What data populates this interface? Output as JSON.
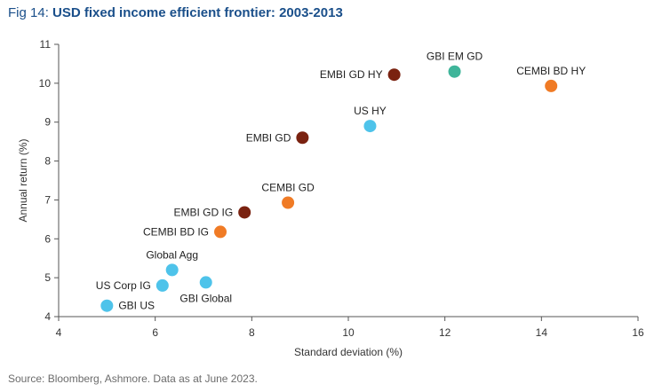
{
  "header": {
    "fig_label": "Fig 14:",
    "title": "USD fixed income efficient frontier: 2003-2013"
  },
  "footer": {
    "source": "Source: Bloomberg, Ashmore. Data as at June 2023."
  },
  "colors": {
    "light_blue": "#4ec3ea",
    "teal": "#3fb59a",
    "dark_red": "#7a2210",
    "orange": "#f07b25",
    "axis": "#555555",
    "title": "#1a4f8a"
  },
  "chart_data": {
    "type": "scatter",
    "title": "USD fixed income efficient frontier: 2003-2013",
    "xlabel": "Standard deviation (%)",
    "ylabel": "Annual return (%)",
    "xlim": [
      4,
      16
    ],
    "ylim": [
      4,
      11
    ],
    "xticks": [
      4,
      6,
      8,
      10,
      12,
      14,
      16
    ],
    "yticks": [
      4,
      5,
      6,
      7,
      8,
      9,
      10,
      11
    ],
    "grid": false,
    "points": [
      {
        "label": "GBI US",
        "x": 5.0,
        "y": 4.28,
        "color": "#4ec3ea",
        "label_pos": "right"
      },
      {
        "label": "US Corp IG",
        "x": 6.15,
        "y": 4.8,
        "color": "#4ec3ea",
        "label_pos": "left"
      },
      {
        "label": "Global Agg",
        "x": 6.35,
        "y": 5.2,
        "color": "#4ec3ea",
        "label_pos": "above"
      },
      {
        "label": "GBI Global",
        "x": 7.05,
        "y": 4.88,
        "color": "#4ec3ea",
        "label_pos": "below"
      },
      {
        "label": "CEMBI BD IG",
        "x": 7.35,
        "y": 6.18,
        "color": "#f07b25",
        "label_pos": "left"
      },
      {
        "label": "EMBI GD IG",
        "x": 7.85,
        "y": 6.68,
        "color": "#7a2210",
        "label_pos": "left"
      },
      {
        "label": "CEMBI GD",
        "x": 8.75,
        "y": 6.93,
        "color": "#f07b25",
        "label_pos": "above"
      },
      {
        "label": "EMBI GD",
        "x": 9.05,
        "y": 8.6,
        "color": "#7a2210",
        "label_pos": "left"
      },
      {
        "label": "US HY",
        "x": 10.45,
        "y": 8.9,
        "color": "#4ec3ea",
        "label_pos": "above"
      },
      {
        "label": "EMBI GD HY",
        "x": 10.95,
        "y": 10.22,
        "color": "#7a2210",
        "label_pos": "left"
      },
      {
        "label": "GBI EM GD",
        "x": 12.2,
        "y": 10.3,
        "color": "#3fb59a",
        "label_pos": "above"
      },
      {
        "label": "CEMBI BD HY",
        "x": 14.2,
        "y": 9.93,
        "color": "#f07b25",
        "label_pos": "above"
      }
    ]
  }
}
